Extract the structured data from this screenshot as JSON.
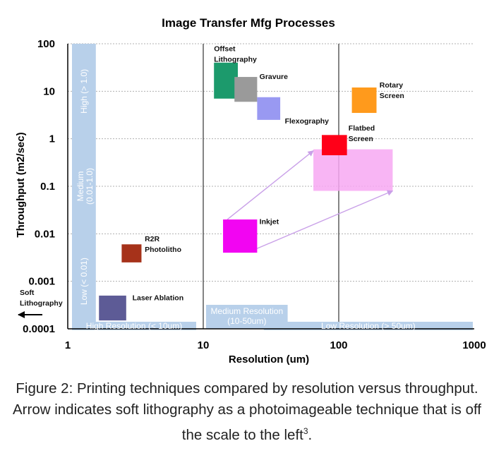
{
  "chart_data": {
    "type": "scatter",
    "title": "Image Transfer Mfg Processes",
    "xlabel": "Resolution (um)",
    "ylabel": "Throughput (m2/sec)",
    "x_scale": "log",
    "y_scale": "log",
    "xlim": [
      1,
      1000
    ],
    "ylim": [
      0.0001,
      100
    ],
    "x_ticks": [
      "1",
      "10",
      "100",
      "1000"
    ],
    "y_ticks": [
      "100",
      "10",
      "1",
      "0.1",
      "0.01",
      "0.001",
      "0.0001"
    ],
    "grid": true,
    "points": [
      {
        "label": "Offset Lithography",
        "x_range": [
          12,
          18
        ],
        "y_range": [
          7,
          40
        ],
        "color": "#1c9a6c"
      },
      {
        "label": "Gravure",
        "x_range": [
          17,
          25
        ],
        "y_range": [
          6,
          20
        ],
        "color": "#9a9a9a"
      },
      {
        "label": "Flexography",
        "x_range": [
          25,
          37
        ],
        "y_range": [
          2.5,
          7.5
        ],
        "color": "#9999f2"
      },
      {
        "label": "Rotary Screen",
        "x_range": [
          125,
          190
        ],
        "y_range": [
          3.5,
          12
        ],
        "color": "#ff9a1c"
      },
      {
        "label": "Flatbed Screen",
        "x_range": [
          75,
          115
        ],
        "y_range": [
          0.45,
          1.2
        ],
        "color": "#ff0018"
      },
      {
        "label": "Inkjet",
        "x_range": [
          14,
          25
        ],
        "y_range": [
          0.004,
          0.02
        ],
        "color": "#f205f2"
      },
      {
        "label": "R2R Photolitho",
        "x_range": [
          2.5,
          3.5
        ],
        "y_range": [
          0.0025,
          0.006
        ],
        "color": "#a6321a"
      },
      {
        "label": "Laser Ablation",
        "x_range": [
          1.7,
          2.7
        ],
        "y_range": [
          0.00015,
          0.0005
        ],
        "color": "#5d5b96"
      }
    ],
    "regions": [
      {
        "label": "Inkjet (extended)",
        "x_range": [
          65,
          250
        ],
        "y_range": [
          0.08,
          0.6
        ],
        "color": "#f7a8f2"
      }
    ],
    "resolution_bands": [
      {
        "label": "High Resolution (< 10um)",
        "x_range": [
          1,
          10
        ]
      },
      {
        "label": "Medium Resolution (10-50um)",
        "x_range": [
          10,
          50
        ]
      },
      {
        "label": "Low Resolution (> 50um)",
        "x_range": [
          50,
          1000
        ]
      }
    ],
    "throughput_bands": [
      {
        "label": "High (> 1.0)",
        "y_range": [
          1,
          100
        ]
      },
      {
        "label": "Medium (0.01-1.0)",
        "y_range": [
          0.01,
          1
        ]
      },
      {
        "label": "Low (< 0.01)",
        "y_range": [
          0.0001,
          0.01
        ]
      }
    ],
    "annotations": [
      {
        "text": "Soft Lithography",
        "note": "arrow pointing left, off scale"
      }
    ],
    "colors": {
      "band": "#b8d0ea",
      "axis": "#000000",
      "grid": "#b0b0b0",
      "arrow": "#c9a0e8"
    }
  },
  "labels": {
    "offset": [
      "Offset",
      "Lithography"
    ],
    "gravure": "Gravure",
    "flexo": "Flexography",
    "rotary": [
      "Rotary",
      "Screen"
    ],
    "flatbed": [
      "Flatbed",
      "Screen"
    ],
    "inkjet": "Inkjet",
    "r2r": [
      "R2R",
      "Photolitho"
    ],
    "laser": "Laser Ablation",
    "soft": [
      "Soft",
      "Lithography"
    ]
  },
  "caption": {
    "text": "Figure 2: Printing techniques compared by resolution versus throughput. Arrow indicates soft lithography as a photoimageable technique that is off the scale to the left",
    "footnote": "3",
    "end": "."
  }
}
